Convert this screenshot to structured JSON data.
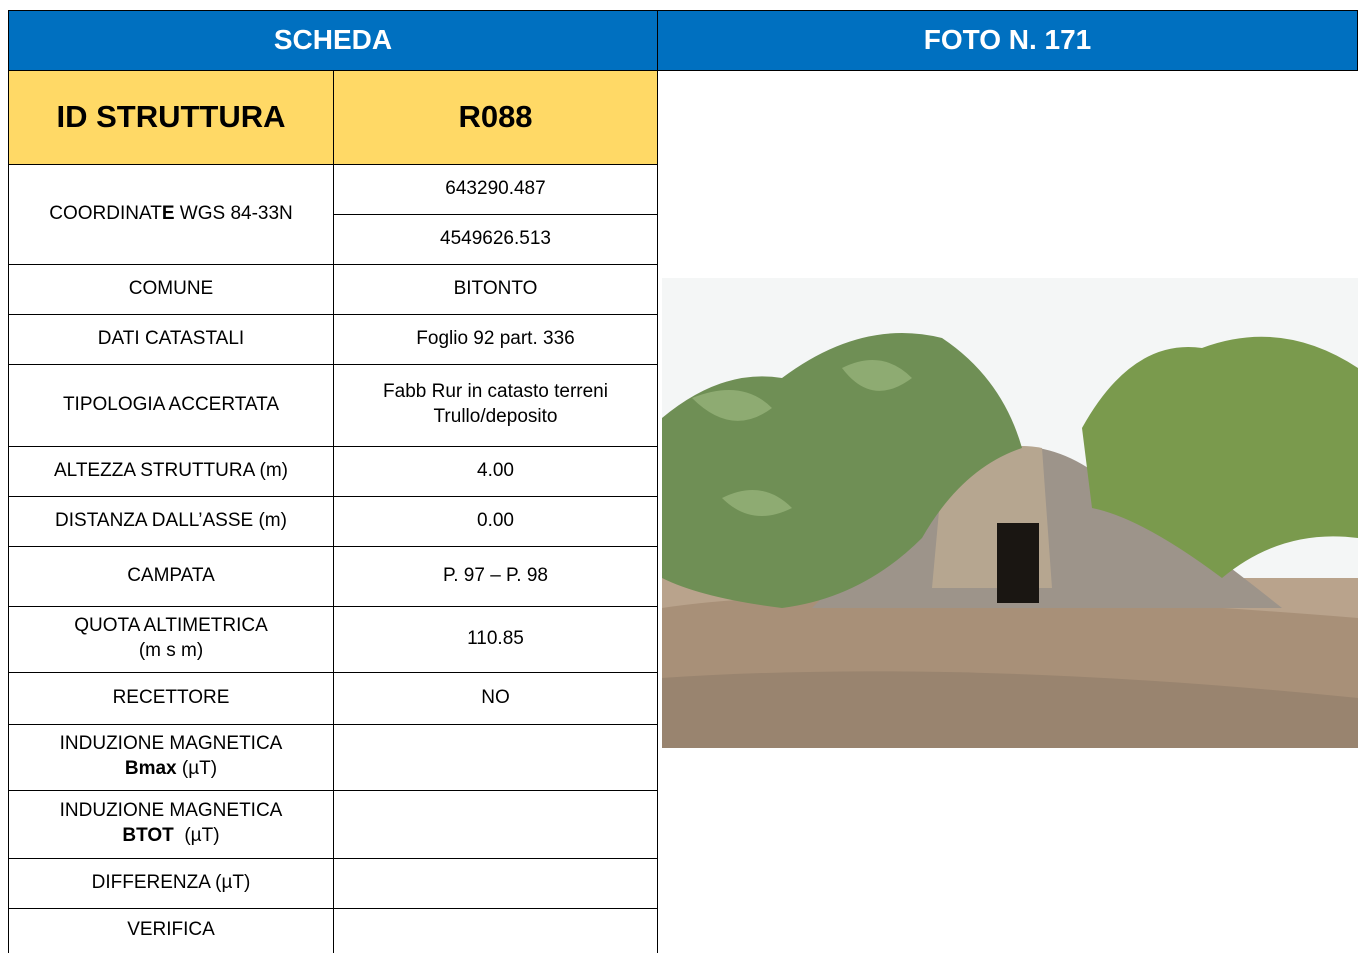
{
  "header": {
    "left": "SCHEDA",
    "right": "FOTO N. 171"
  },
  "id": {
    "label": "ID STRUTTURA",
    "value": "R088"
  },
  "rows": [
    {
      "label": [
        "COORDINAT",
        "E",
        " WGS 84-33N"
      ],
      "values": [
        "643290.487",
        "4549626.513"
      ]
    },
    {
      "label": "COMUNE",
      "value": "BITONTO"
    },
    {
      "label": "DATI CATASTALI",
      "value": "Foglio 92 part. 336"
    },
    {
      "label": "TIPOLOGIA ACCERTATA",
      "value": [
        "Fabb Rur in catasto terreni",
        "Trullo/deposito"
      ]
    },
    {
      "label": "ALTEZZA STRUTTURA (m)",
      "value": "4.00"
    },
    {
      "label": "DISTANZA DALL’ASSE (m)",
      "value": "0.00"
    },
    {
      "label": "CAMPATA",
      "value": "P. 97 – P. 98"
    },
    {
      "label": [
        "QUOTA ALTIMETRICA",
        "(m s m)"
      ],
      "value": "110.85"
    },
    {
      "label": "RECETTORE",
      "value": "NO"
    },
    {
      "label": [
        "INDUZIONE MAGNETICA",
        "Bmax",
        "(µT)"
      ]
    },
    {
      "label": [
        "INDUZIONE MAGNETICA",
        "BTOT",
        "(µT)"
      ]
    },
    {
      "label": "DIFFERENZA (µT)"
    },
    {
      "label": "VERIFICA"
    }
  ]
}
